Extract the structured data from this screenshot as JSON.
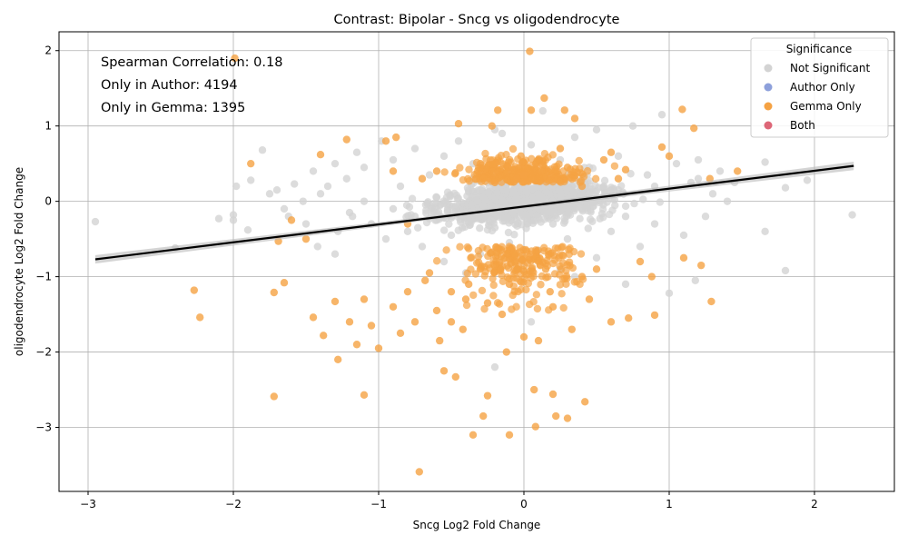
{
  "chart_data": {
    "type": "scatter",
    "title": "Contrast: Bipolar - Sncg vs oligodendrocyte",
    "xlabel": "Sncg Log2 Fold Change",
    "ylabel": "oligodendrocyte Log2 Fold Change",
    "xlim": [
      -3.2,
      2.55
    ],
    "ylim": [
      -3.85,
      2.25
    ],
    "xticks": [
      -3,
      -2,
      -1,
      0,
      1,
      2
    ],
    "yticks": [
      -3,
      -2,
      -1,
      0,
      1,
      2
    ],
    "xtick_labels": [
      "−3",
      "−2",
      "−1",
      "0",
      "1",
      "2"
    ],
    "ytick_labels": [
      "−3",
      "−2",
      "−1",
      "0",
      "1",
      "2"
    ],
    "grid": true,
    "annotations": [
      "Spearman Correlation: 0.18",
      "Only in Author: 4194",
      "Only in Gemma: 1395"
    ],
    "legend": {
      "title": "Significance",
      "placement": "top-right",
      "entries": [
        {
          "label": "Not Significant",
          "color": "#d3d3d3"
        },
        {
          "label": "Author Only",
          "color": "#8da0db"
        },
        {
          "label": "Gemma Only",
          "color": "#f5a243"
        },
        {
          "label": "Both",
          "color": "#dd6677"
        }
      ]
    },
    "regression_line": {
      "x": [
        -2.95,
        2.27
      ],
      "y": [
        -0.77,
        0.47
      ],
      "color": "#000000"
    },
    "series": [
      {
        "name": "Not Significant",
        "color": "#d3d3d3",
        "points": [
          [
            -2.95,
            -0.27
          ],
          [
            -2.4,
            -0.62
          ],
          [
            -2.1,
            -0.23
          ],
          [
            -2.0,
            -0.18
          ],
          [
            -2.0,
            -0.25
          ],
          [
            -1.98,
            0.2
          ],
          [
            -1.9,
            -0.38
          ],
          [
            -1.88,
            0.28
          ],
          [
            -1.8,
            0.68
          ],
          [
            -1.75,
            0.1
          ],
          [
            -1.7,
            0.15
          ],
          [
            -1.65,
            -0.1
          ],
          [
            -1.62,
            -0.2
          ],
          [
            -1.58,
            0.23
          ],
          [
            -1.52,
            0.0
          ],
          [
            -1.5,
            -0.3
          ],
          [
            -1.45,
            0.4
          ],
          [
            -1.42,
            -0.6
          ],
          [
            -1.4,
            0.1
          ],
          [
            -1.35,
            0.2
          ],
          [
            -1.3,
            0.5
          ],
          [
            -1.28,
            -0.4
          ],
          [
            -1.22,
            0.3
          ],
          [
            -1.18,
            -0.2
          ],
          [
            -1.15,
            0.65
          ],
          [
            -1.1,
            0.45
          ],
          [
            -1.05,
            -0.3
          ],
          [
            -0.98,
            0.8
          ],
          [
            -0.95,
            -0.5
          ],
          [
            -0.9,
            0.55
          ],
          [
            -0.85,
            0.2
          ],
          [
            -0.8,
            -0.4
          ],
          [
            -0.75,
            0.7
          ],
          [
            -0.7,
            -0.6
          ],
          [
            -0.65,
            0.35
          ],
          [
            -0.6,
            -0.25
          ],
          [
            -0.55,
            0.6
          ],
          [
            -0.5,
            -0.45
          ],
          [
            -0.45,
            0.8
          ],
          [
            -0.4,
            -0.15
          ],
          [
            -0.35,
            0.5
          ],
          [
            -0.3,
            -0.7
          ],
          [
            -0.25,
            0.25
          ],
          [
            -0.2,
            -0.35
          ],
          [
            -0.15,
            0.9
          ],
          [
            -0.1,
            -0.55
          ],
          [
            -0.05,
            0.4
          ],
          [
            0.0,
            -0.2
          ],
          [
            0.05,
            0.75
          ],
          [
            0.1,
            -0.65
          ],
          [
            0.13,
            1.2
          ],
          [
            0.15,
            0.3
          ],
          [
            0.2,
            -0.3
          ],
          [
            0.25,
            0.55
          ],
          [
            0.3,
            -0.5
          ],
          [
            0.35,
            0.85
          ],
          [
            0.4,
            -0.1
          ],
          [
            0.45,
            0.45
          ],
          [
            0.5,
            -0.75
          ],
          [
            0.55,
            0.2
          ],
          [
            0.6,
            -0.4
          ],
          [
            0.65,
            0.6
          ],
          [
            0.7,
            -0.2
          ],
          [
            0.75,
            1.0
          ],
          [
            0.8,
            -0.6
          ],
          [
            0.85,
            0.35
          ],
          [
            0.9,
            -0.3
          ],
          [
            0.95,
            1.15
          ],
          [
            1.0,
            -1.22
          ],
          [
            1.05,
            0.5
          ],
          [
            1.1,
            -0.45
          ],
          [
            1.15,
            0.25
          ],
          [
            1.18,
            -1.05
          ],
          [
            1.2,
            0.55
          ],
          [
            1.25,
            -0.2
          ],
          [
            1.3,
            0.1
          ],
          [
            1.35,
            0.4
          ],
          [
            1.4,
            0.0
          ],
          [
            1.45,
            0.25
          ],
          [
            1.66,
            0.52
          ],
          [
            1.66,
            -0.4
          ],
          [
            1.8,
            0.18
          ],
          [
            1.8,
            -0.92
          ],
          [
            1.95,
            0.28
          ],
          [
            2.26,
            -0.18
          ],
          [
            -0.55,
            -0.8
          ],
          [
            -0.4,
            -0.95
          ],
          [
            0.25,
            -0.9
          ],
          [
            0.35,
            -1.0
          ],
          [
            -0.2,
            0.95
          ],
          [
            0.5,
            0.95
          ],
          [
            0.7,
            -1.1
          ],
          [
            -1.3,
            -0.7
          ],
          [
            -1.1,
            0.0
          ],
          [
            -0.2,
            -2.2
          ],
          [
            0.05,
            -1.6
          ],
          [
            -0.15,
            0.0
          ],
          [
            0.1,
            0.1
          ],
          [
            -0.3,
            0.15
          ],
          [
            0.3,
            -0.05
          ],
          [
            -0.6,
            0.05
          ],
          [
            0.6,
            0.15
          ],
          [
            -0.9,
            -0.1
          ],
          [
            0.9,
            0.2
          ],
          [
            -1.2,
            -0.15
          ],
          [
            1.2,
            0.3
          ],
          [
            -0.75,
            -0.2
          ],
          [
            0.45,
            0.1
          ],
          [
            -0.05,
            0.05
          ],
          [
            0.2,
            -0.15
          ]
        ]
      },
      {
        "name": "Gemma Only",
        "color": "#f5a243",
        "points": [
          [
            -1.99,
            1.9
          ],
          [
            -1.88,
            0.5
          ],
          [
            -2.27,
            -1.18
          ],
          [
            -2.23,
            -1.54
          ],
          [
            -1.72,
            -1.21
          ],
          [
            -1.72,
            -2.59
          ],
          [
            -1.69,
            -0.53
          ],
          [
            -1.65,
            -1.08
          ],
          [
            -1.6,
            -0.25
          ],
          [
            -1.5,
            -0.5
          ],
          [
            -1.45,
            -1.54
          ],
          [
            -1.4,
            0.62
          ],
          [
            -1.38,
            -1.78
          ],
          [
            -1.3,
            -1.33
          ],
          [
            -1.28,
            -2.1
          ],
          [
            -1.22,
            0.82
          ],
          [
            -1.2,
            -1.6
          ],
          [
            -1.15,
            -1.9
          ],
          [
            -1.1,
            -2.57
          ],
          [
            -1.05,
            -1.65
          ],
          [
            -1.0,
            -1.95
          ],
          [
            -0.95,
            0.8
          ],
          [
            -0.9,
            -1.4
          ],
          [
            -0.88,
            0.85
          ],
          [
            -0.85,
            -1.75
          ],
          [
            -0.8,
            -1.2
          ],
          [
            -0.75,
            -1.6
          ],
          [
            -0.72,
            -3.59
          ],
          [
            -0.7,
            0.3
          ],
          [
            -0.68,
            -1.05
          ],
          [
            -0.65,
            -0.95
          ],
          [
            -0.6,
            -1.45
          ],
          [
            -0.58,
            -1.85
          ],
          [
            -0.55,
            -2.25
          ],
          [
            -0.5,
            -1.2
          ],
          [
            -0.47,
            -2.33
          ],
          [
            -0.45,
            1.03
          ],
          [
            -0.42,
            -1.7
          ],
          [
            -0.38,
            -1.1
          ],
          [
            -0.35,
            -3.1
          ],
          [
            -0.3,
            -0.9
          ],
          [
            -0.28,
            -2.85
          ],
          [
            -0.25,
            -2.58
          ],
          [
            -0.22,
            1.0
          ],
          [
            -0.18,
            1.21
          ],
          [
            -0.15,
            -1.5
          ],
          [
            -0.12,
            -2.0
          ],
          [
            -0.1,
            -3.1
          ],
          [
            -0.05,
            0.3
          ],
          [
            -0.02,
            0.6
          ],
          [
            0.04,
            1.99
          ],
          [
            0.05,
            1.21
          ],
          [
            0.07,
            -2.5
          ],
          [
            0.08,
            -2.99
          ],
          [
            0.1,
            -1.85
          ],
          [
            0.12,
            0.4
          ],
          [
            0.14,
            1.37
          ],
          [
            0.18,
            -1.2
          ],
          [
            0.2,
            -2.56
          ],
          [
            0.22,
            -2.85
          ],
          [
            0.25,
            0.7
          ],
          [
            0.28,
            1.21
          ],
          [
            0.3,
            -2.88
          ],
          [
            0.33,
            -1.7
          ],
          [
            0.35,
            1.1
          ],
          [
            0.4,
            0.2
          ],
          [
            0.42,
            -2.66
          ],
          [
            0.45,
            -1.3
          ],
          [
            0.5,
            -0.9
          ],
          [
            0.55,
            0.55
          ],
          [
            0.6,
            -1.6
          ],
          [
            0.65,
            0.3
          ],
          [
            0.7,
            0.42
          ],
          [
            0.72,
            -1.55
          ],
          [
            0.8,
            -0.8
          ],
          [
            0.88,
            -1.0
          ],
          [
            0.9,
            -1.51
          ],
          [
            0.95,
            0.72
          ],
          [
            1.0,
            0.6
          ],
          [
            1.09,
            1.22
          ],
          [
            1.1,
            -0.75
          ],
          [
            1.17,
            0.97
          ],
          [
            1.22,
            -0.85
          ],
          [
            1.28,
            0.3
          ],
          [
            1.29,
            -1.33
          ],
          [
            1.47,
            0.4
          ],
          [
            -0.6,
            0.4
          ],
          [
            -0.3,
            0.5
          ],
          [
            0.0,
            0.35
          ],
          [
            0.1,
            0.55
          ],
          [
            -0.2,
            0.25
          ],
          [
            0.3,
            0.45
          ],
          [
            -0.4,
            -1.3
          ],
          [
            -0.1,
            -1.1
          ],
          [
            0.2,
            -1.4
          ],
          [
            -0.5,
            -1.6
          ],
          [
            0.0,
            -1.8
          ],
          [
            0.15,
            -0.9
          ],
          [
            -0.25,
            -1.35
          ],
          [
            0.4,
            -1.0
          ],
          [
            -0.8,
            -0.3
          ],
          [
            -1.1,
            -1.3
          ],
          [
            -0.9,
            0.4
          ],
          [
            0.6,
            0.65
          ]
        ]
      }
    ]
  }
}
